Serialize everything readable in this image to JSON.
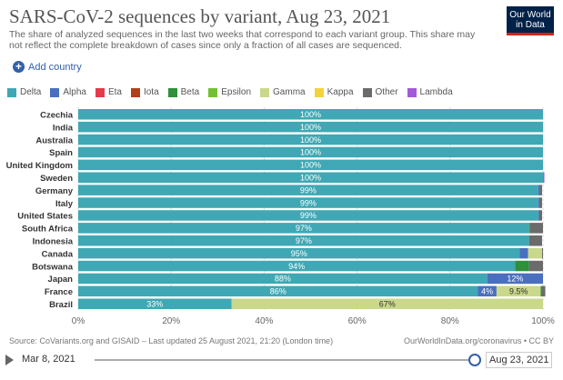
{
  "header": {
    "title": "SARS-CoV-2 sequences by variant, Aug 23, 2021",
    "subtitle": "The share of analyzed sequences in the last two weeks that correspond to each variant group. This share may not reflect the complete breakdown of cases since only a fraction of all cases are sequenced.",
    "logo_line1": "Our World",
    "logo_line2": "in Data"
  },
  "controls": {
    "add_country": "Add country"
  },
  "legend": [
    {
      "name": "Delta",
      "color": "#3fa8b4"
    },
    {
      "name": "Alpha",
      "color": "#4a6fbe"
    },
    {
      "name": "Eta",
      "color": "#e23b4b"
    },
    {
      "name": "Iota",
      "color": "#b04019"
    },
    {
      "name": "Beta",
      "color": "#2f8f3a"
    },
    {
      "name": "Epsilon",
      "color": "#72c031"
    },
    {
      "name": "Gamma",
      "color": "#c9d88a"
    },
    {
      "name": "Kappa",
      "color": "#f4d23a"
    },
    {
      "name": "Other",
      "color": "#6b6b6b"
    },
    {
      "name": "Lambda",
      "color": "#a359d8"
    }
  ],
  "chart_data": {
    "type": "bar",
    "orientation": "horizontal-stacked",
    "title": "SARS-CoV-2 sequences by variant, Aug 23, 2021",
    "xlim": [
      0,
      100
    ],
    "x_ticks": [
      "0%",
      "20%",
      "40%",
      "60%",
      "80%",
      "100%"
    ],
    "categories": [
      "Czechia",
      "India",
      "Australia",
      "Spain",
      "United Kingdom",
      "Sweden",
      "Germany",
      "Italy",
      "United States",
      "South Africa",
      "Indonesia",
      "Canada",
      "Botswana",
      "Japan",
      "France",
      "Brazil"
    ],
    "series": [
      {
        "name": "Delta",
        "values": [
          100,
          100,
          100,
          100,
          100,
          100,
          99,
          99,
          99,
          97,
          97,
          95,
          94,
          88,
          86,
          33
        ]
      },
      {
        "name": "Alpha",
        "values": [
          0,
          0,
          0,
          0,
          0,
          0,
          0.3,
          0.2,
          0.2,
          0,
          0,
          1.8,
          0,
          12,
          4,
          0
        ]
      },
      {
        "name": "Gamma",
        "values": [
          0,
          0,
          0,
          0,
          0,
          0,
          0,
          0,
          0,
          0,
          0,
          3,
          0,
          0,
          9.5,
          67
        ]
      },
      {
        "name": "Beta",
        "values": [
          0,
          0,
          0,
          0,
          0,
          0,
          0,
          0,
          0,
          0.2,
          0,
          0,
          3,
          0,
          0.2,
          0
        ]
      },
      {
        "name": "Other",
        "values": [
          0,
          0,
          0,
          0,
          0,
          0,
          0.5,
          0.6,
          0.6,
          2.8,
          2.8,
          0.2,
          3,
          0,
          0.8,
          0
        ]
      },
      {
        "name": "Lambda",
        "values": [
          0,
          0,
          0,
          0,
          0,
          0.3,
          0,
          0,
          0,
          0,
          0,
          0,
          0,
          0,
          0,
          0
        ]
      }
    ],
    "labels": [
      {
        "category": "Czechia",
        "series": "Delta",
        "text": "100%"
      },
      {
        "category": "India",
        "series": "Delta",
        "text": "100%"
      },
      {
        "category": "Australia",
        "series": "Delta",
        "text": "100%"
      },
      {
        "category": "Spain",
        "series": "Delta",
        "text": "100%"
      },
      {
        "category": "United Kingdom",
        "series": "Delta",
        "text": "100%"
      },
      {
        "category": "Sweden",
        "series": "Delta",
        "text": "100%"
      },
      {
        "category": "Germany",
        "series": "Delta",
        "text": "99%"
      },
      {
        "category": "Italy",
        "series": "Delta",
        "text": "99%"
      },
      {
        "category": "United States",
        "series": "Delta",
        "text": "99%"
      },
      {
        "category": "South Africa",
        "series": "Delta",
        "text": "97%"
      },
      {
        "category": "Indonesia",
        "series": "Delta",
        "text": "97%"
      },
      {
        "category": "Canada",
        "series": "Delta",
        "text": "95%"
      },
      {
        "category": "Botswana",
        "series": "Delta",
        "text": "94%"
      },
      {
        "category": "Japan",
        "series": "Delta",
        "text": "88%"
      },
      {
        "category": "Japan",
        "series": "Alpha",
        "text": "12%"
      },
      {
        "category": "France",
        "series": "Delta",
        "text": "86%"
      },
      {
        "category": "France",
        "series": "Alpha",
        "text": "4%"
      },
      {
        "category": "France",
        "series": "Gamma",
        "text": "9.5%"
      },
      {
        "category": "Brazil",
        "series": "Delta",
        "text": "33%"
      },
      {
        "category": "Brazil",
        "series": "Gamma",
        "text": "67%"
      }
    ]
  },
  "footer": {
    "source": "Source: CoVariants.org and GISAID – Last updated 25 August 2021, 21:20 (London time)",
    "credit": "OurWorldInData.org/coronavirus • CC BY"
  },
  "timeline": {
    "start_date": "Mar 8, 2021",
    "end_date": "Aug 23, 2021"
  }
}
